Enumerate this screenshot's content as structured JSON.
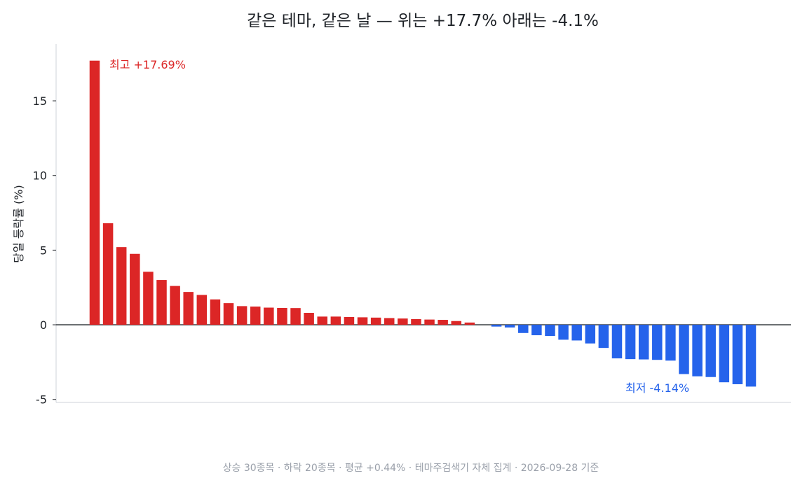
{
  "chart_data": {
    "type": "bar",
    "title": "같은 테마, 같은 날 — 위는 +17.7% 아래는 -4.1%",
    "xlabel": "",
    "ylabel": "당일 등락률 (%)",
    "ylim": [
      -5.2,
      18.8
    ],
    "yticks": [
      -5,
      0,
      5,
      10,
      15
    ],
    "ytick_labels": [
      "-5",
      "0",
      "5",
      "10",
      "15"
    ],
    "grid": false,
    "values": [
      17.69,
      6.8,
      5.2,
      4.75,
      3.55,
      3.0,
      2.6,
      2.2,
      2.0,
      1.7,
      1.45,
      1.25,
      1.22,
      1.15,
      1.13,
      1.12,
      0.8,
      0.55,
      0.55,
      0.52,
      0.5,
      0.48,
      0.45,
      0.42,
      0.38,
      0.35,
      0.33,
      0.25,
      0.15,
      0.0,
      -0.12,
      -0.18,
      -0.55,
      -0.7,
      -0.75,
      -1.0,
      -1.05,
      -1.25,
      -1.55,
      -2.25,
      -2.3,
      -2.32,
      -2.35,
      -2.4,
      -3.3,
      -3.45,
      -3.5,
      -3.85,
      -3.98,
      -4.14
    ],
    "colors": {
      "up": "#dc2626",
      "down": "#2563eb",
      "zero_line": "#1f2328",
      "axis": "#cfd3d8"
    },
    "annotations": {
      "max": {
        "text": "최고 +17.69%",
        "color": "#dc2626"
      },
      "min": {
        "text": "최저 -4.14%",
        "color": "#2563eb"
      }
    },
    "footnote": "상승 30종목 · 하락 20종목 · 평균 +0.44% · 테마주검색기 자체 집계 · 2026-09-28 기준"
  }
}
